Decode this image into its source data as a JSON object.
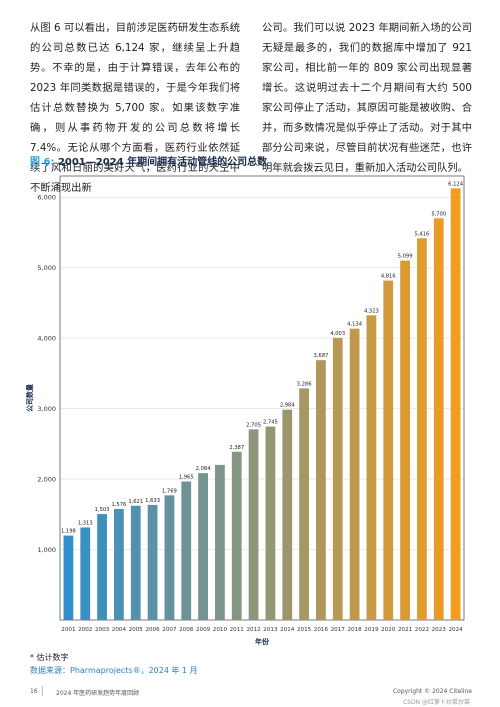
{
  "text": {
    "left": "从图 6 可以看出，目前涉足医药研发生态系统的公司总数已达 6,124 家，继续呈上升趋势。不幸的是，由于计算错误，去年公布的 2023 年同类数据是错误的，于是今年我们将估计总数替换为 5,700 家。如果该数字准确，则从事药物开发的公司总数将增长 7.4%。无论从哪个方面看，医药行业依然延续了风和日丽的美好天气，医药行业的天空中不断涌现出新",
    "right": "公司。我们可以说 2023 年期间新入场的公司无疑是最多的，我们的数据库中增加了 921 家公司，相比前一年的 809 家公司出现显著增长。这说明过去十二个月期间有大约 500 家公司停止了活动，其原因可能是被收购、合并，而多数情况是似乎停止了活动。对于其中部分公司来说，尽管目前状况有些迷茫，也许明年就会拨云见日，重新加入活动公司队列。"
  },
  "figure": {
    "number": "图 6:",
    "title": "2001—2024 年期间拥有活动管线的公司总数"
  },
  "chart_data": {
    "type": "bar",
    "categories": [
      "2001",
      "2002",
      "2003",
      "2004",
      "2005",
      "2006",
      "2007",
      "2008",
      "2009",
      "2010",
      "2011",
      "2012",
      "2013",
      "2014",
      "2015",
      "2016",
      "2017",
      "2018",
      "2019",
      "2020",
      "2021",
      "2022",
      "2023",
      "2024"
    ],
    "values": [
      1198,
      1313,
      1503,
      1576,
      1621,
      1633,
      1769,
      1965,
      2084,
      2201,
      2387,
      2705,
      2745,
      2984,
      3286,
      3687,
      4003,
      4134,
      4323,
      4816,
      5099,
      5416,
      5700,
      6124
    ],
    "data_labels": [
      "1,198",
      "1,313",
      "1,503",
      "1,576",
      "1,621",
      "1,633",
      "1,769",
      "1,965",
      "2,084",
      "",
      "2,387",
      "2,705",
      "2,745",
      "2,984",
      "3,286",
      "3,687",
      "4,003",
      "4,134",
      "4,323",
      "4,816",
      "5,099",
      "5,416",
      "5,700",
      "6,124"
    ],
    "xlabel": "年份",
    "ylabel": "公司数量",
    "ylim": [
      0,
      6300
    ],
    "yticks": [
      1000,
      2000,
      3000,
      4000,
      5000,
      6000
    ],
    "ytick_labels": [
      "1,000",
      "2,000",
      "3,000",
      "4,000",
      "5,000",
      "6,000"
    ],
    "grid": true,
    "colors": {
      "early": "#2f8fcd",
      "late": "#f39c1f",
      "axis": "#444444",
      "grid": "#dddddd"
    }
  },
  "notes": {
    "estimate": "* 估计数字",
    "source": "数据来源：Pharmaprojects®，2024 年 1 月"
  },
  "footer": {
    "page": "16",
    "publication": "2024 年医药研发趋势年度回顾",
    "copyright": "Copyright © 2024 Citeline"
  },
  "watermark": "CSDN @红萝卜炒菜炒菜"
}
